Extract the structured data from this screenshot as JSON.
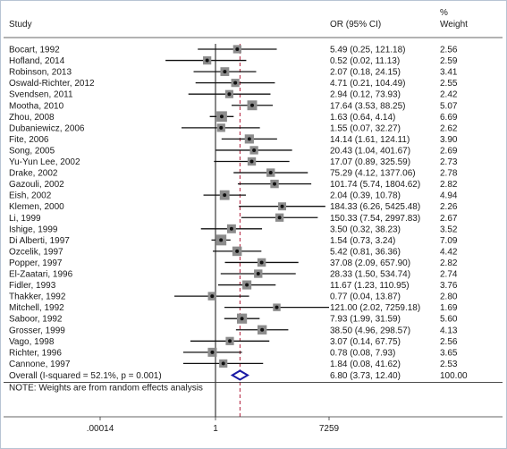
{
  "chart_data": {
    "type": "forest",
    "headers": {
      "study": "Study",
      "effect": "OR (95% CI)",
      "weight_line1": "%",
      "weight_line2": "Weight"
    },
    "x_scale": "log",
    "x_ticks": [
      {
        "value": 0.000138,
        "label": ".00014"
      },
      {
        "value": 1,
        "label": "1"
      },
      {
        "value": 7259,
        "label": "7259"
      }
    ],
    "reference_line": 1,
    "pooled_line": 6.8,
    "studies": [
      {
        "study": "Bocart, 1992",
        "or": 5.49,
        "lo": 0.25,
        "hi": 121.18,
        "ci_text": "5.49 (0.25, 121.18)",
        "weight": "2.56"
      },
      {
        "study": "Hofland, 2014",
        "or": 0.52,
        "lo": 0.02,
        "hi": 11.13,
        "ci_text": "0.52 (0.02, 11.13)",
        "weight": "2.59"
      },
      {
        "study": "Robinson, 2013",
        "or": 2.07,
        "lo": 0.18,
        "hi": 24.15,
        "ci_text": "2.07 (0.18, 24.15)",
        "weight": "3.41"
      },
      {
        "study": "Oswald-Richter, 2012",
        "or": 4.71,
        "lo": 0.21,
        "hi": 104.49,
        "ci_text": "4.71 (0.21, 104.49)",
        "weight": "2.55"
      },
      {
        "study": "Svendsen, 2011",
        "or": 2.94,
        "lo": 0.12,
        "hi": 73.93,
        "ci_text": "2.94 (0.12, 73.93)",
        "weight": "2.42"
      },
      {
        "study": "Mootha, 2010",
        "or": 17.64,
        "lo": 3.53,
        "hi": 88.25,
        "ci_text": "17.64 (3.53, 88.25)",
        "weight": "5.07"
      },
      {
        "study": "Zhou, 2008",
        "or": 1.63,
        "lo": 0.64,
        "hi": 4.14,
        "ci_text": "1.63 (0.64, 4.14)",
        "weight": "6.69"
      },
      {
        "study": "Dubaniewicz, 2006",
        "or": 1.55,
        "lo": 0.07,
        "hi": 32.27,
        "ci_text": "1.55 (0.07, 32.27)",
        "weight": "2.62"
      },
      {
        "study": "Fite, 2006",
        "or": 14.14,
        "lo": 1.61,
        "hi": 124.11,
        "ci_text": "14.14 (1.61, 124.11)",
        "weight": "3.90"
      },
      {
        "study": "Song, 2005",
        "or": 20.43,
        "lo": 1.04,
        "hi": 401.67,
        "ci_text": "20.43 (1.04, 401.67)",
        "weight": "2.69"
      },
      {
        "study": "Yu-Yun Lee, 2002",
        "or": 17.07,
        "lo": 0.89,
        "hi": 325.59,
        "ci_text": "17.07 (0.89, 325.59)",
        "weight": "2.73"
      },
      {
        "study": "Drake, 2002",
        "or": 75.29,
        "lo": 4.12,
        "hi": 1377.06,
        "ci_text": "75.29 (4.12, 1377.06)",
        "weight": "2.78"
      },
      {
        "study": "Gazouli, 2002",
        "or": 101.74,
        "lo": 5.74,
        "hi": 1804.62,
        "ci_text": "101.74 (5.74, 1804.62)",
        "weight": "2.82"
      },
      {
        "study": "Eish, 2002",
        "or": 2.04,
        "lo": 0.39,
        "hi": 10.78,
        "ci_text": "2.04 (0.39, 10.78)",
        "weight": "4.94"
      },
      {
        "study": "Klemen, 2000",
        "or": 184.33,
        "lo": 6.26,
        "hi": 5425.48,
        "ci_text": "184.33 (6.26, 5425.48)",
        "weight": "2.26"
      },
      {
        "study": "Li, 1999",
        "or": 150.33,
        "lo": 7.54,
        "hi": 2997.83,
        "ci_text": "150.33 (7.54, 2997.83)",
        "weight": "2.67"
      },
      {
        "study": "Ishige, 1999",
        "or": 3.5,
        "lo": 0.32,
        "hi": 38.23,
        "ci_text": "3.50 (0.32, 38.23)",
        "weight": "3.52"
      },
      {
        "study": "Di Alberti, 1997",
        "or": 1.54,
        "lo": 0.73,
        "hi": 3.24,
        "ci_text": "1.54 (0.73, 3.24)",
        "weight": "7.09"
      },
      {
        "study": "Ozcelik, 1997",
        "or": 5.42,
        "lo": 0.81,
        "hi": 36.36,
        "ci_text": "5.42 (0.81, 36.36)",
        "weight": "4.42"
      },
      {
        "study": "Popper, 1997",
        "or": 37.08,
        "lo": 2.09,
        "hi": 657.9,
        "ci_text": "37.08 (2.09, 657.90)",
        "weight": "2.82"
      },
      {
        "study": "El-Zaatari, 1996",
        "or": 28.33,
        "lo": 1.5,
        "hi": 534.74,
        "ci_text": "28.33 (1.50, 534.74)",
        "weight": "2.74"
      },
      {
        "study": "Fidler, 1993",
        "or": 11.67,
        "lo": 1.23,
        "hi": 110.95,
        "ci_text": "11.67 (1.23, 110.95)",
        "weight": "3.76"
      },
      {
        "study": "Thakker, 1992",
        "or": 0.77,
        "lo": 0.04,
        "hi": 13.87,
        "ci_text": "0.77 (0.04, 13.87)",
        "weight": "2.80"
      },
      {
        "study": "Mitchell, 1992",
        "or": 121.0,
        "lo": 2.02,
        "hi": 7259.18,
        "ci_text": "121.00 (2.02, 7259.18)",
        "weight": "1.69"
      },
      {
        "study": "Saboor, 1992",
        "or": 7.93,
        "lo": 1.99,
        "hi": 31.59,
        "ci_text": "7.93 (1.99, 31.59)",
        "weight": "5.60"
      },
      {
        "study": "Grosser, 1999",
        "or": 38.5,
        "lo": 4.96,
        "hi": 298.57,
        "ci_text": "38.50 (4.96, 298.57)",
        "weight": "4.13"
      },
      {
        "study": "Vago, 1998",
        "or": 3.07,
        "lo": 0.14,
        "hi": 67.75,
        "ci_text": "3.07 (0.14, 67.75)",
        "weight": "2.56"
      },
      {
        "study": "Richter, 1996",
        "or": 0.78,
        "lo": 0.08,
        "hi": 7.93,
        "ci_text": "0.78 (0.08, 7.93)",
        "weight": "3.65"
      },
      {
        "study": "Cannone, 1997",
        "or": 1.84,
        "lo": 0.08,
        "hi": 41.62,
        "ci_text": "1.84 (0.08, 41.62)",
        "weight": "2.53"
      }
    ],
    "overall": {
      "label": "Overall  (I-squared = 52.1%, p = 0.001)",
      "or": 6.8,
      "lo": 3.73,
      "hi": 12.4,
      "ci_text": "6.80 (3.73, 12.40)",
      "weight": "100.00"
    },
    "note": "NOTE: Weights are from random effects analysis",
    "colors": {
      "pooled_line": "#b01c3a",
      "overall_diamond": "#1a1aa6",
      "box": "#8c8c8c",
      "frame": "#b8c4d4"
    }
  }
}
